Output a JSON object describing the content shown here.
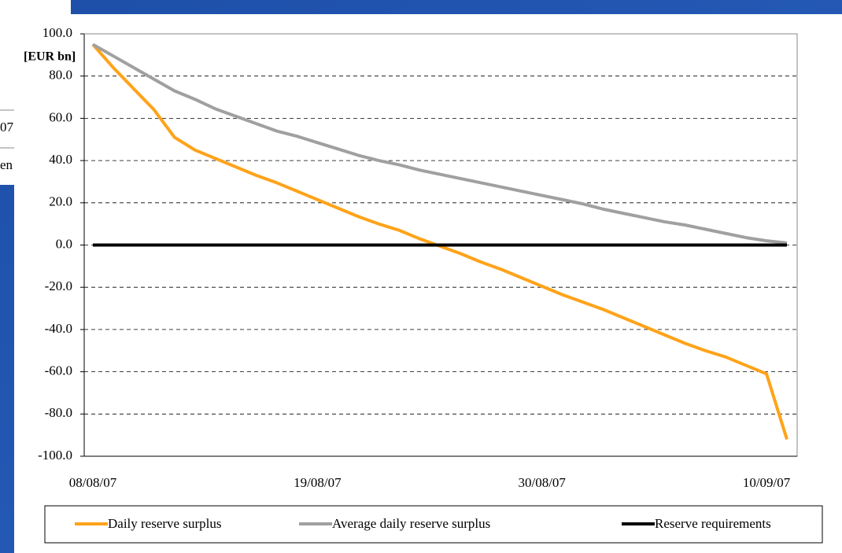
{
  "background_fragments": [
    "07",
    "en"
  ],
  "chart_data": {
    "type": "line",
    "y_label": "[EUR bn]",
    "categories": [
      "08/08/07",
      null,
      null,
      null,
      null,
      null,
      null,
      null,
      null,
      null,
      null,
      "19/08/07",
      null,
      null,
      null,
      null,
      null,
      null,
      null,
      null,
      null,
      null,
      "30/08/07",
      null,
      null,
      null,
      null,
      null,
      null,
      null,
      null,
      null,
      null,
      "10/09/07",
      null
    ],
    "series": [
      {
        "name": "Daily reserve surplus",
        "color": "#ffa31a",
        "values": [
          95,
          84,
          74,
          64,
          51,
          45,
          41,
          37,
          33,
          29.5,
          25.5,
          21.5,
          17.5,
          13.5,
          10,
          7,
          3,
          -0.5,
          -4,
          -8,
          -11.5,
          -15.5,
          -19.5,
          -23.5,
          -27,
          -30.5,
          -34.5,
          -38.5,
          -42.5,
          -46.5,
          -50,
          -53,
          -57,
          -61,
          -92
        ]
      },
      {
        "name": "Average daily reserve surplus",
        "color": "#a0a0a0",
        "values": [
          95,
          89.5,
          84,
          78.5,
          73,
          69,
          64.5,
          61,
          57.5,
          54,
          51.5,
          48.5,
          45.5,
          42.5,
          40,
          38,
          35.5,
          33.5,
          31.5,
          29.5,
          27.5,
          25.5,
          23.5,
          21.5,
          19.5,
          17,
          15,
          13,
          11,
          9.5,
          7.5,
          5.5,
          3.5,
          2,
          1
        ]
      },
      {
        "name": "Reserve requirements",
        "color": "#000000",
        "values": [
          0,
          0,
          0,
          0,
          0,
          0,
          0,
          0,
          0,
          0,
          0,
          0,
          0,
          0,
          0,
          0,
          0,
          0,
          0,
          0,
          0,
          0,
          0,
          0,
          0,
          0,
          0,
          0,
          0,
          0,
          0,
          0,
          0,
          0,
          0
        ]
      }
    ],
    "ylim": [
      -100,
      100
    ],
    "yticks": [
      {
        "value": -100,
        "label": "-100.0"
      },
      {
        "value": -80,
        "label": "-80.0"
      },
      {
        "value": -60,
        "label": "-60.0"
      },
      {
        "value": -40,
        "label": "-40.0"
      },
      {
        "value": -20,
        "label": "-20.0"
      },
      {
        "value": 0,
        "label": "0.0"
      },
      {
        "value": 20,
        "label": "20.0"
      },
      {
        "value": 40,
        "label": "40.0"
      },
      {
        "value": 60,
        "label": "60.0"
      },
      {
        "value": 80,
        "label": "80.0"
      },
      {
        "value": 100,
        "label": "100.0"
      }
    ],
    "grid": true,
    "legend": "bottom"
  }
}
